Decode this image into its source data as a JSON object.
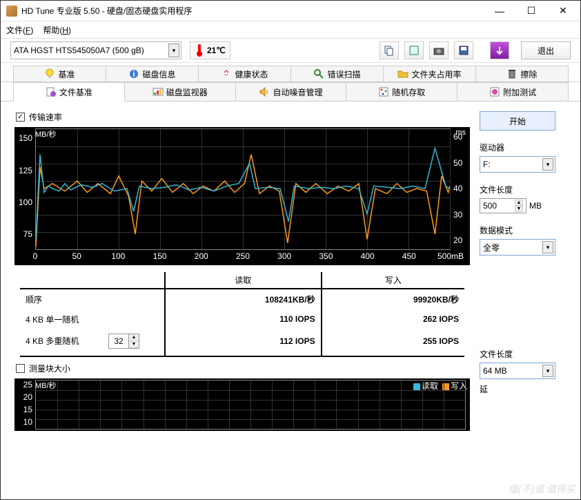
{
  "window": {
    "title": "HD Tune 专业版 5.50 - 硬盘/固态硬盘实用程序"
  },
  "menu": {
    "file": "文件(F)",
    "help": "帮助(H)"
  },
  "toolbar": {
    "drive": "ATA   HGST HTS545050A7 (500 gB)",
    "temp": "21℃",
    "exit": "退出"
  },
  "tabs_row1": {
    "benchmark": "基准",
    "diskinfo": "磁盘信息",
    "health": "健康状态",
    "errorscan": "错误扫描",
    "folderusage": "文件夹占用率",
    "erase": "擦除"
  },
  "tabs_row2": {
    "filebench": "文件基准",
    "diskmonitor": "磁盘监视器",
    "aam": "自动噪音管理",
    "randomaccess": "随机存取",
    "extra": "附加测试"
  },
  "chkbox": {
    "transfer_rate": "传输速率",
    "block_size": "测量块大小"
  },
  "chart1": {
    "ylabel_left": "MB/秒",
    "ylabel_right": "ms",
    "yticks_left": [
      150,
      125,
      100,
      75
    ],
    "yticks_right": [
      60,
      50,
      40,
      30,
      20
    ],
    "xticks": [
      0,
      50,
      100,
      150,
      200,
      250,
      300,
      350,
      400,
      450,
      "500mB"
    ],
    "ylim_left": [
      60,
      155
    ],
    "ylim_right": [
      15,
      62
    ],
    "colors": {
      "read": "#33b8d8",
      "write": "#ff9a1a",
      "bg": "#000000",
      "grid": "#333333"
    },
    "read_series": [
      [
        0,
        68
      ],
      [
        5,
        135
      ],
      [
        10,
        105
      ],
      [
        15,
        110
      ],
      [
        20,
        108
      ],
      [
        28,
        106
      ],
      [
        35,
        112
      ],
      [
        42,
        107
      ],
      [
        55,
        111
      ],
      [
        68,
        109
      ],
      [
        80,
        112
      ],
      [
        95,
        106
      ],
      [
        110,
        108
      ],
      [
        118,
        90
      ],
      [
        125,
        110
      ],
      [
        140,
        108
      ],
      [
        155,
        109
      ],
      [
        170,
        111
      ],
      [
        185,
        107
      ],
      [
        200,
        109
      ],
      [
        215,
        106
      ],
      [
        230,
        110
      ],
      [
        245,
        112
      ],
      [
        258,
        128
      ],
      [
        265,
        108
      ],
      [
        280,
        109
      ],
      [
        295,
        108
      ],
      [
        305,
        82
      ],
      [
        312,
        110
      ],
      [
        330,
        108
      ],
      [
        345,
        109
      ],
      [
        360,
        108
      ],
      [
        375,
        110
      ],
      [
        390,
        108
      ],
      [
        400,
        88
      ],
      [
        408,
        110
      ],
      [
        425,
        109
      ],
      [
        440,
        108
      ],
      [
        455,
        110
      ],
      [
        470,
        108
      ],
      [
        482,
        140
      ],
      [
        495,
        110
      ],
      [
        500,
        108
      ]
    ],
    "write_series": [
      [
        0,
        62
      ],
      [
        5,
        125
      ],
      [
        10,
        108
      ],
      [
        20,
        112
      ],
      [
        35,
        106
      ],
      [
        50,
        114
      ],
      [
        62,
        105
      ],
      [
        75,
        112
      ],
      [
        90,
        104
      ],
      [
        100,
        118
      ],
      [
        112,
        102
      ],
      [
        120,
        72
      ],
      [
        128,
        114
      ],
      [
        140,
        106
      ],
      [
        152,
        116
      ],
      [
        165,
        105
      ],
      [
        178,
        112
      ],
      [
        190,
        104
      ],
      [
        202,
        110
      ],
      [
        215,
        106
      ],
      [
        228,
        114
      ],
      [
        240,
        105
      ],
      [
        252,
        112
      ],
      [
        260,
        135
      ],
      [
        270,
        104
      ],
      [
        282,
        110
      ],
      [
        294,
        106
      ],
      [
        304,
        65
      ],
      [
        314,
        112
      ],
      [
        326,
        105
      ],
      [
        338,
        112
      ],
      [
        352,
        104
      ],
      [
        365,
        110
      ],
      [
        378,
        106
      ],
      [
        390,
        112
      ],
      [
        400,
        68
      ],
      [
        410,
        108
      ],
      [
        424,
        104
      ],
      [
        436,
        112
      ],
      [
        448,
        105
      ],
      [
        460,
        108
      ],
      [
        472,
        106
      ],
      [
        482,
        72
      ],
      [
        490,
        118
      ],
      [
        498,
        105
      ],
      [
        500,
        110
      ]
    ]
  },
  "results": {
    "headers": {
      "first": "",
      "read": "读取",
      "write": "写入"
    },
    "rows": [
      {
        "label": "顺序",
        "read": "108241KB/秒",
        "write": "99920KB/秒",
        "spinner": null
      },
      {
        "label": "4 KB 单一随机",
        "read": "110 IOPS",
        "write": "262 IOPS",
        "spinner": null
      },
      {
        "label": "4 KB 多重随机",
        "read": "112 IOPS",
        "write": "255 IOPS",
        "spinner": "32"
      }
    ]
  },
  "chart2": {
    "ylabel": "MB/秒",
    "yticks": [
      25,
      20,
      15,
      10
    ],
    "legend": {
      "read": "读取",
      "write": "写入"
    },
    "colors": {
      "read": "#33b8d8",
      "write": "#ff9a1a"
    }
  },
  "panel": {
    "start": "开始",
    "drive_label": "驱动器",
    "drive_value": "F:",
    "file_len_label": "文件长度",
    "file_len_value": "500",
    "file_len_unit": "MB",
    "data_mode_label": "数据模式",
    "data_mode_value": "全零",
    "file_len2_label": "文件长度",
    "file_len2_value": "64 MB",
    "ext_label": "延"
  },
  "watermark": "值(不)值 值得买"
}
